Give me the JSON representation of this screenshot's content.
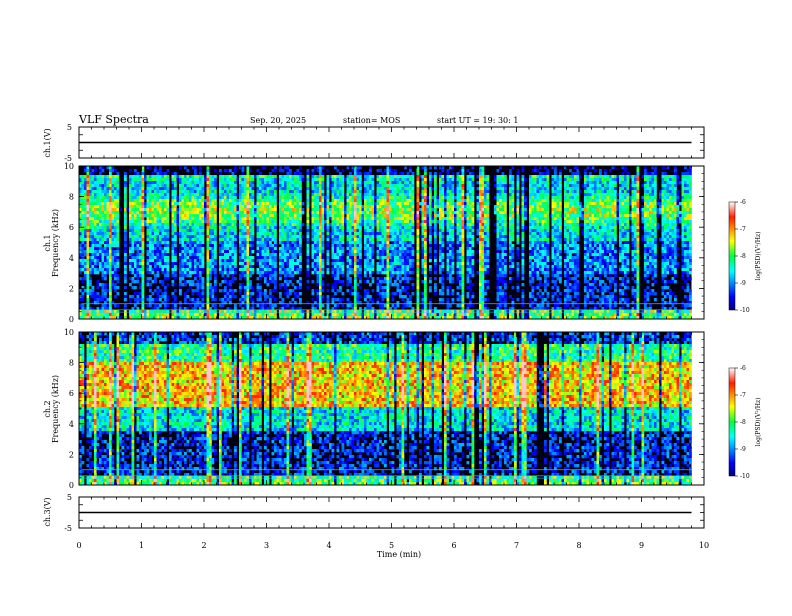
{
  "header": {
    "title": "VLF Spectra",
    "date": "Sep. 20, 2025",
    "station": "station= MOS",
    "start": "start  UT =   19: 30: 1"
  },
  "chart_data": [
    {
      "type": "line",
      "panel": "ch1-waveform",
      "ylabel": "ch.1(V)",
      "ylim": [
        -5,
        5
      ],
      "yticks": [
        "5",
        "-5"
      ],
      "xlim": [
        0,
        10
      ],
      "series": [
        {
          "x": [
            0,
            9.8
          ],
          "y": [
            0,
            0
          ]
        }
      ]
    },
    {
      "type": "heatmap",
      "panel": "ch1-spectrogram",
      "ylabel": "ch.1\nFrequency (kHz)",
      "ylabel_line1": "ch.1",
      "ylabel_line2": "Frequency (kHz)",
      "ylim": [
        0,
        10
      ],
      "yticks": [
        "0",
        "2",
        "4",
        "6",
        "8",
        "10"
      ],
      "xlim": [
        0,
        10
      ],
      "data_xmax": 9.8,
      "colorbar": {
        "label": "log(PSD)(V²/Hz)",
        "range": [
          -10,
          -6
        ],
        "ticks": [
          "-6",
          "-7",
          "-8",
          "-9",
          "-10"
        ]
      }
    },
    {
      "type": "heatmap",
      "panel": "ch2-spectrogram",
      "ylabel_line1": "ch.2",
      "ylabel_line2": "Frequency (kHz)",
      "ylim": [
        0,
        10
      ],
      "yticks": [
        "0",
        "2",
        "4",
        "6",
        "8",
        "10"
      ],
      "xlim": [
        0,
        10
      ],
      "data_xmax": 9.8,
      "colorbar": {
        "label": "log(PSD)(V²/Hz)",
        "range": [
          -10,
          -6
        ],
        "ticks": [
          "-6",
          "-7",
          "-8",
          "-9",
          "-10"
        ]
      }
    },
    {
      "type": "line",
      "panel": "ch3-waveform",
      "ylabel": "ch.3(V)",
      "ylim": [
        -5,
        5
      ],
      "yticks": [
        "5",
        "-5"
      ],
      "xlim": [
        0,
        10
      ],
      "xlabel": "Time  (min)",
      "xticks": [
        "0",
        "1",
        "2",
        "3",
        "4",
        "5",
        "6",
        "7",
        "8",
        "9",
        "10"
      ],
      "series": [
        {
          "x": [
            0,
            9.8
          ],
          "y": [
            0,
            0
          ]
        }
      ]
    }
  ]
}
